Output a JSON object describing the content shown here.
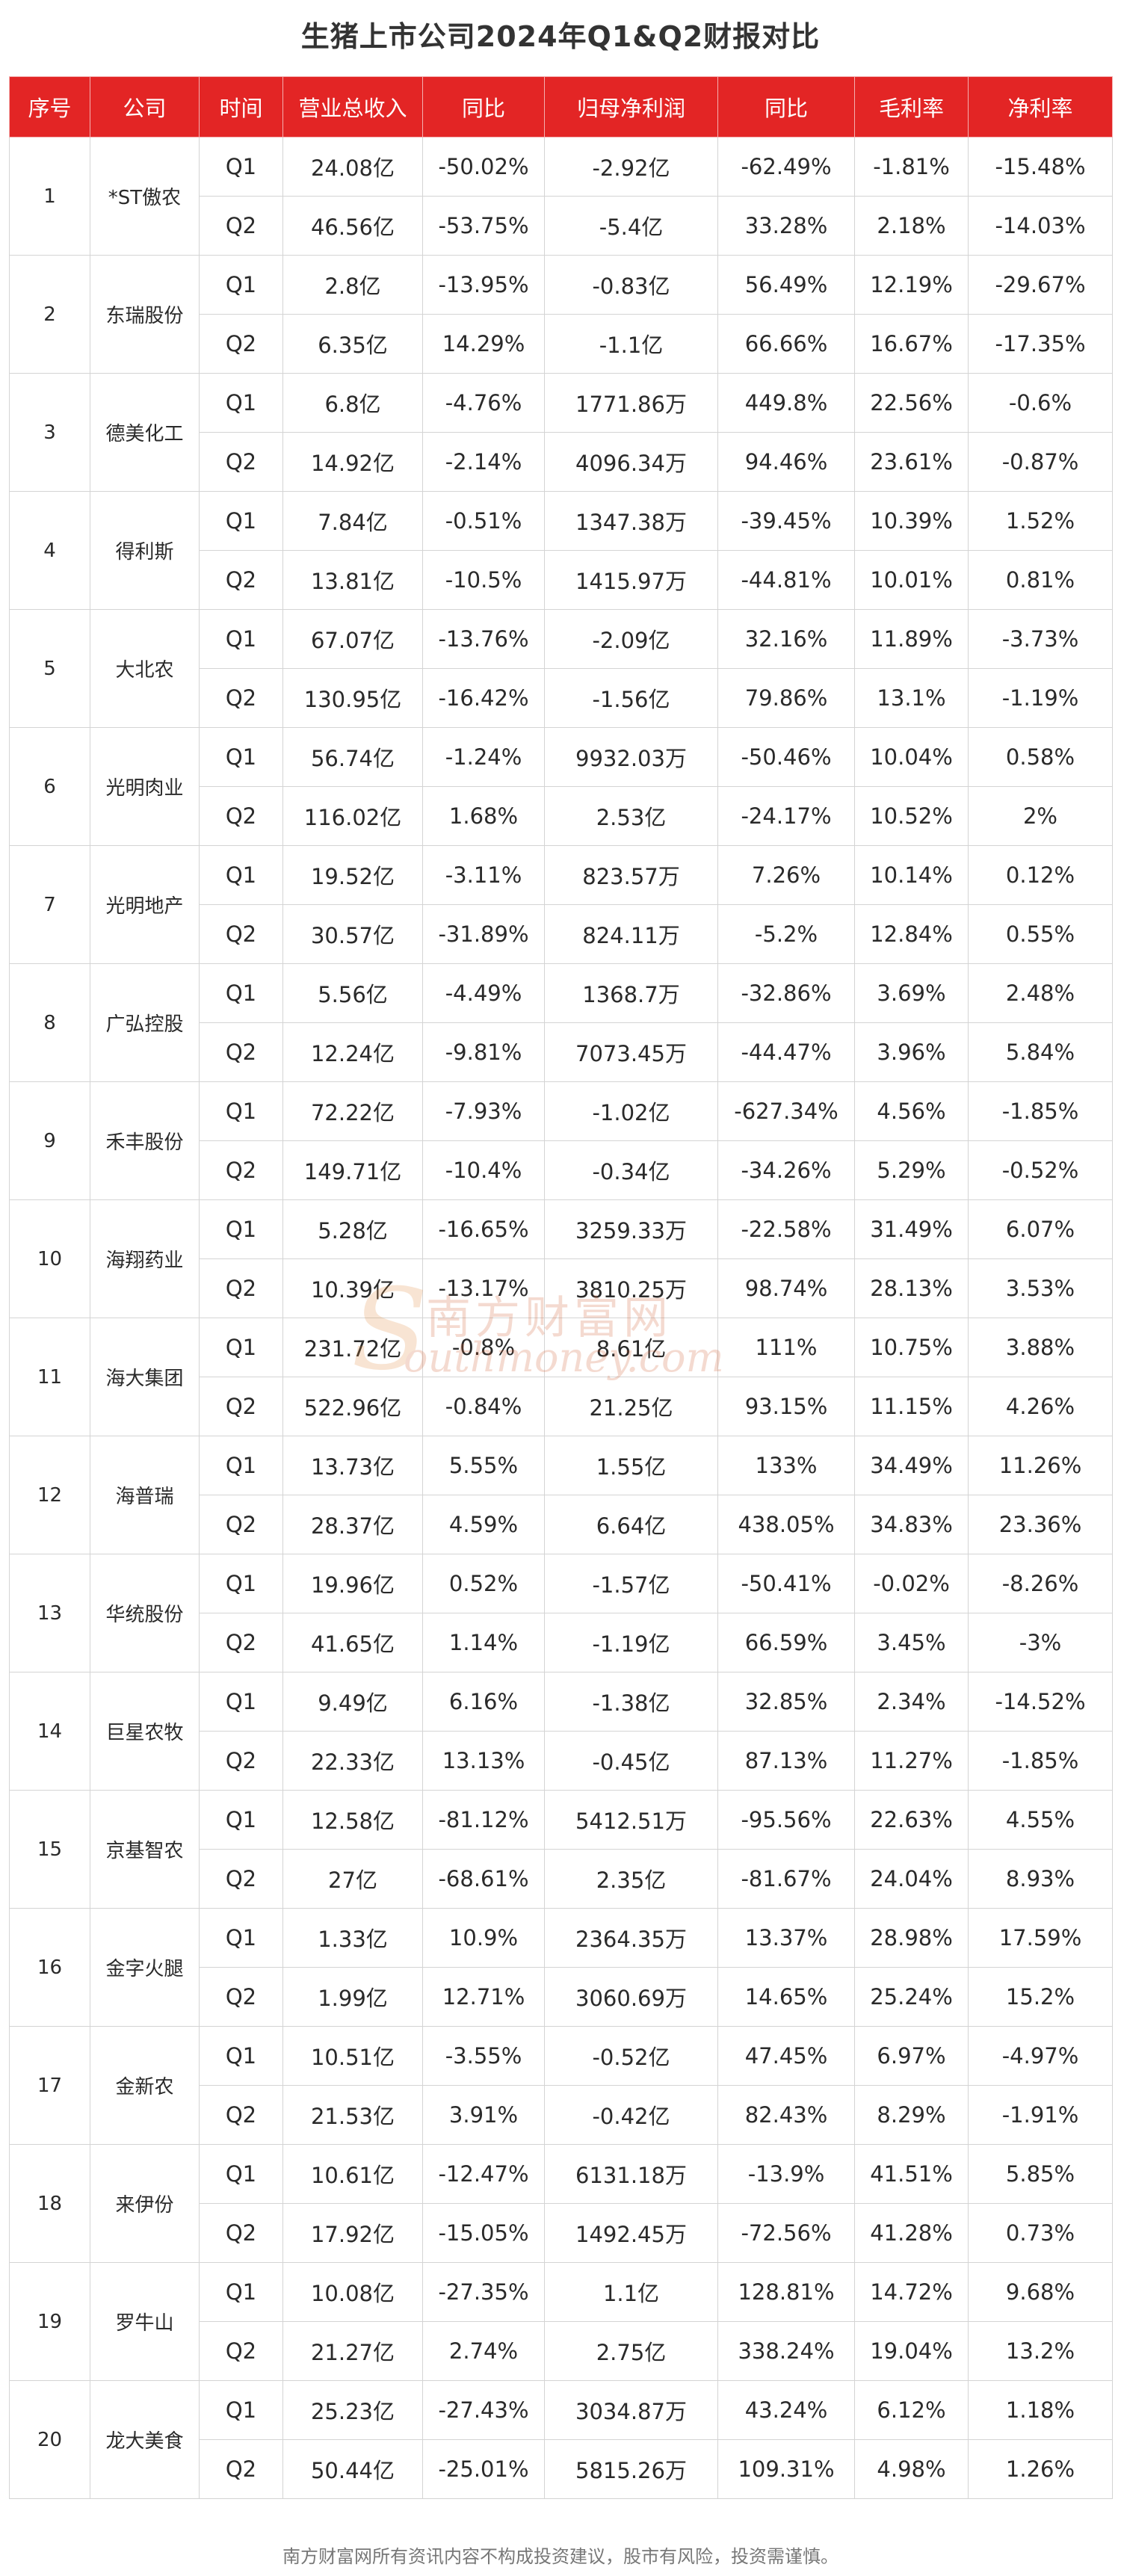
{
  "title": "生猪上市公司2024年Q1&Q2财报对比",
  "columns": [
    "序号",
    "公司",
    "时间",
    "营业总收入",
    "同比",
    "归母净利润",
    "同比",
    "毛利率",
    "净利率"
  ],
  "companies": [
    {
      "index": "1",
      "name": "*ST傲农",
      "rows": [
        {
          "period": "Q1",
          "revenue": "24.08亿",
          "revenue_yoy": "-50.02%",
          "net_profit": "-2.92亿",
          "profit_yoy": "-62.49%",
          "gross_margin": "-1.81%",
          "net_margin": "-15.48%"
        },
        {
          "period": "Q2",
          "revenue": "46.56亿",
          "revenue_yoy": "-53.75%",
          "net_profit": "-5.4亿",
          "profit_yoy": "33.28%",
          "gross_margin": "2.18%",
          "net_margin": "-14.03%"
        }
      ]
    },
    {
      "index": "2",
      "name": "东瑞股份",
      "rows": [
        {
          "period": "Q1",
          "revenue": "2.8亿",
          "revenue_yoy": "-13.95%",
          "net_profit": "-0.83亿",
          "profit_yoy": "56.49%",
          "gross_margin": "12.19%",
          "net_margin": "-29.67%"
        },
        {
          "period": "Q2",
          "revenue": "6.35亿",
          "revenue_yoy": "14.29%",
          "net_profit": "-1.1亿",
          "profit_yoy": "66.66%",
          "gross_margin": "16.67%",
          "net_margin": "-17.35%"
        }
      ]
    },
    {
      "index": "3",
      "name": "德美化工",
      "rows": [
        {
          "period": "Q1",
          "revenue": "6.8亿",
          "revenue_yoy": "-4.76%",
          "net_profit": "1771.86万",
          "profit_yoy": "449.8%",
          "gross_margin": "22.56%",
          "net_margin": "-0.6%"
        },
        {
          "period": "Q2",
          "revenue": "14.92亿",
          "revenue_yoy": "-2.14%",
          "net_profit": "4096.34万",
          "profit_yoy": "94.46%",
          "gross_margin": "23.61%",
          "net_margin": "-0.87%"
        }
      ]
    },
    {
      "index": "4",
      "name": "得利斯",
      "rows": [
        {
          "period": "Q1",
          "revenue": "7.84亿",
          "revenue_yoy": "-0.51%",
          "net_profit": "1347.38万",
          "profit_yoy": "-39.45%",
          "gross_margin": "10.39%",
          "net_margin": "1.52%"
        },
        {
          "period": "Q2",
          "revenue": "13.81亿",
          "revenue_yoy": "-10.5%",
          "net_profit": "1415.97万",
          "profit_yoy": "-44.81%",
          "gross_margin": "10.01%",
          "net_margin": "0.81%"
        }
      ]
    },
    {
      "index": "5",
      "name": "大北农",
      "rows": [
        {
          "period": "Q1",
          "revenue": "67.07亿",
          "revenue_yoy": "-13.76%",
          "net_profit": "-2.09亿",
          "profit_yoy": "32.16%",
          "gross_margin": "11.89%",
          "net_margin": "-3.73%"
        },
        {
          "period": "Q2",
          "revenue": "130.95亿",
          "revenue_yoy": "-16.42%",
          "net_profit": "-1.56亿",
          "profit_yoy": "79.86%",
          "gross_margin": "13.1%",
          "net_margin": "-1.19%"
        }
      ]
    },
    {
      "index": "6",
      "name": "光明肉业",
      "rows": [
        {
          "period": "Q1",
          "revenue": "56.74亿",
          "revenue_yoy": "-1.24%",
          "net_profit": "9932.03万",
          "profit_yoy": "-50.46%",
          "gross_margin": "10.04%",
          "net_margin": "0.58%"
        },
        {
          "period": "Q2",
          "revenue": "116.02亿",
          "revenue_yoy": "1.68%",
          "net_profit": "2.53亿",
          "profit_yoy": "-24.17%",
          "gross_margin": "10.52%",
          "net_margin": "2%"
        }
      ]
    },
    {
      "index": "7",
      "name": "光明地产",
      "rows": [
        {
          "period": "Q1",
          "revenue": "19.52亿",
          "revenue_yoy": "-3.11%",
          "net_profit": "823.57万",
          "profit_yoy": "7.26%",
          "gross_margin": "10.14%",
          "net_margin": "0.12%"
        },
        {
          "period": "Q2",
          "revenue": "30.57亿",
          "revenue_yoy": "-31.89%",
          "net_profit": "824.11万",
          "profit_yoy": "-5.2%",
          "gross_margin": "12.84%",
          "net_margin": "0.55%"
        }
      ]
    },
    {
      "index": "8",
      "name": "广弘控股",
      "rows": [
        {
          "period": "Q1",
          "revenue": "5.56亿",
          "revenue_yoy": "-4.49%",
          "net_profit": "1368.7万",
          "profit_yoy": "-32.86%",
          "gross_margin": "3.69%",
          "net_margin": "2.48%"
        },
        {
          "period": "Q2",
          "revenue": "12.24亿",
          "revenue_yoy": "-9.81%",
          "net_profit": "7073.45万",
          "profit_yoy": "-44.47%",
          "gross_margin": "3.96%",
          "net_margin": "5.84%"
        }
      ]
    },
    {
      "index": "9",
      "name": "禾丰股份",
      "rows": [
        {
          "period": "Q1",
          "revenue": "72.22亿",
          "revenue_yoy": "-7.93%",
          "net_profit": "-1.02亿",
          "profit_yoy": "-627.34%",
          "gross_margin": "4.56%",
          "net_margin": "-1.85%"
        },
        {
          "period": "Q2",
          "revenue": "149.71亿",
          "revenue_yoy": "-10.4%",
          "net_profit": "-0.34亿",
          "profit_yoy": "-34.26%",
          "gross_margin": "5.29%",
          "net_margin": "-0.52%"
        }
      ]
    },
    {
      "index": "10",
      "name": "海翔药业",
      "rows": [
        {
          "period": "Q1",
          "revenue": "5.28亿",
          "revenue_yoy": "-16.65%",
          "net_profit": "3259.33万",
          "profit_yoy": "-22.58%",
          "gross_margin": "31.49%",
          "net_margin": "6.07%"
        },
        {
          "period": "Q2",
          "revenue": "10.39亿",
          "revenue_yoy": "-13.17%",
          "net_profit": "3810.25万",
          "profit_yoy": "98.74%",
          "gross_margin": "28.13%",
          "net_margin": "3.53%"
        }
      ]
    },
    {
      "index": "11",
      "name": "海大集团",
      "rows": [
        {
          "period": "Q1",
          "revenue": "231.72亿",
          "revenue_yoy": "-0.8%",
          "net_profit": "8.61亿",
          "profit_yoy": "111%",
          "gross_margin": "10.75%",
          "net_margin": "3.88%"
        },
        {
          "period": "Q2",
          "revenue": "522.96亿",
          "revenue_yoy": "-0.84%",
          "net_profit": "21.25亿",
          "profit_yoy": "93.15%",
          "gross_margin": "11.15%",
          "net_margin": "4.26%"
        }
      ]
    },
    {
      "index": "12",
      "name": "海普瑞",
      "rows": [
        {
          "period": "Q1",
          "revenue": "13.73亿",
          "revenue_yoy": "5.55%",
          "net_profit": "1.55亿",
          "profit_yoy": "133%",
          "gross_margin": "34.49%",
          "net_margin": "11.26%"
        },
        {
          "period": "Q2",
          "revenue": "28.37亿",
          "revenue_yoy": "4.59%",
          "net_profit": "6.64亿",
          "profit_yoy": "438.05%",
          "gross_margin": "34.83%",
          "net_margin": "23.36%"
        }
      ]
    },
    {
      "index": "13",
      "name": "华统股份",
      "rows": [
        {
          "period": "Q1",
          "revenue": "19.96亿",
          "revenue_yoy": "0.52%",
          "net_profit": "-1.57亿",
          "profit_yoy": "-50.41%",
          "gross_margin": "-0.02%",
          "net_margin": "-8.26%"
        },
        {
          "period": "Q2",
          "revenue": "41.65亿",
          "revenue_yoy": "1.14%",
          "net_profit": "-1.19亿",
          "profit_yoy": "66.59%",
          "gross_margin": "3.45%",
          "net_margin": "-3%"
        }
      ]
    },
    {
      "index": "14",
      "name": "巨星农牧",
      "rows": [
        {
          "period": "Q1",
          "revenue": "9.49亿",
          "revenue_yoy": "6.16%",
          "net_profit": "-1.38亿",
          "profit_yoy": "32.85%",
          "gross_margin": "2.34%",
          "net_margin": "-14.52%"
        },
        {
          "period": "Q2",
          "revenue": "22.33亿",
          "revenue_yoy": "13.13%",
          "net_profit": "-0.45亿",
          "profit_yoy": "87.13%",
          "gross_margin": "11.27%",
          "net_margin": "-1.85%"
        }
      ]
    },
    {
      "index": "15",
      "name": "京基智农",
      "rows": [
        {
          "period": "Q1",
          "revenue": "12.58亿",
          "revenue_yoy": "-81.12%",
          "net_profit": "5412.51万",
          "profit_yoy": "-95.56%",
          "gross_margin": "22.63%",
          "net_margin": "4.55%"
        },
        {
          "period": "Q2",
          "revenue": "27亿",
          "revenue_yoy": "-68.61%",
          "net_profit": "2.35亿",
          "profit_yoy": "-81.67%",
          "gross_margin": "24.04%",
          "net_margin": "8.93%"
        }
      ]
    },
    {
      "index": "16",
      "name": "金字火腿",
      "rows": [
        {
          "period": "Q1",
          "revenue": "1.33亿",
          "revenue_yoy": "10.9%",
          "net_profit": "2364.35万",
          "profit_yoy": "13.37%",
          "gross_margin": "28.98%",
          "net_margin": "17.59%"
        },
        {
          "period": "Q2",
          "revenue": "1.99亿",
          "revenue_yoy": "12.71%",
          "net_profit": "3060.69万",
          "profit_yoy": "14.65%",
          "gross_margin": "25.24%",
          "net_margin": "15.2%"
        }
      ]
    },
    {
      "index": "17",
      "name": "金新农",
      "rows": [
        {
          "period": "Q1",
          "revenue": "10.51亿",
          "revenue_yoy": "-3.55%",
          "net_profit": "-0.52亿",
          "profit_yoy": "47.45%",
          "gross_margin": "6.97%",
          "net_margin": "-4.97%"
        },
        {
          "period": "Q2",
          "revenue": "21.53亿",
          "revenue_yoy": "3.91%",
          "net_profit": "-0.42亿",
          "profit_yoy": "82.43%",
          "gross_margin": "8.29%",
          "net_margin": "-1.91%"
        }
      ]
    },
    {
      "index": "18",
      "name": "来伊份",
      "rows": [
        {
          "period": "Q1",
          "revenue": "10.61亿",
          "revenue_yoy": "-12.47%",
          "net_profit": "6131.18万",
          "profit_yoy": "-13.9%",
          "gross_margin": "41.51%",
          "net_margin": "5.85%"
        },
        {
          "period": "Q2",
          "revenue": "17.92亿",
          "revenue_yoy": "-15.05%",
          "net_profit": "1492.45万",
          "profit_yoy": "-72.56%",
          "gross_margin": "41.28%",
          "net_margin": "0.73%"
        }
      ]
    },
    {
      "index": "19",
      "name": "罗牛山",
      "rows": [
        {
          "period": "Q1",
          "revenue": "10.08亿",
          "revenue_yoy": "-27.35%",
          "net_profit": "1.1亿",
          "profit_yoy": "128.81%",
          "gross_margin": "14.72%",
          "net_margin": "9.68%"
        },
        {
          "period": "Q2",
          "revenue": "21.27亿",
          "revenue_yoy": "2.74%",
          "net_profit": "2.75亿",
          "profit_yoy": "338.24%",
          "gross_margin": "19.04%",
          "net_margin": "13.2%"
        }
      ]
    },
    {
      "index": "20",
      "name": "龙大美食",
      "rows": [
        {
          "period": "Q1",
          "revenue": "25.23亿",
          "revenue_yoy": "-27.43%",
          "net_profit": "3034.87万",
          "profit_yoy": "43.24%",
          "gross_margin": "6.12%",
          "net_margin": "1.18%"
        },
        {
          "period": "Q2",
          "revenue": "50.44亿",
          "revenue_yoy": "-25.01%",
          "net_profit": "5815.26万",
          "profit_yoy": "109.31%",
          "gross_margin": "4.98%",
          "net_margin": "1.26%"
        }
      ]
    }
  ],
  "watermark": {
    "cn": "南方财富网",
    "en": "outhmoney.com",
    "initial": "S"
  },
  "footer": "南方财富网所有资讯内容不构成投资建议，股市有风险，投资需谨慎。",
  "colors": {
    "header_bg": "#e32525",
    "header_text": "#ffffff",
    "border": "#d4d4d4",
    "watermark": "#d15b2e"
  }
}
